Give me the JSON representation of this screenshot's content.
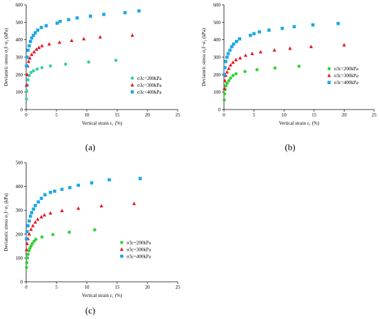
{
  "chart_data": [
    {
      "type": "scatter",
      "panel_label": "(a)",
      "xlabel": "Vertical strain ε₁ (%)",
      "ylabel": "Deviatoric stress σ₁f−σ₃ (kPa)",
      "xlim": [
        0,
        25
      ],
      "ylim": [
        0,
        600
      ],
      "xticks": [
        0,
        5,
        10,
        15,
        20,
        25
      ],
      "yticks": [
        0,
        100,
        200,
        300,
        400,
        500,
        600
      ],
      "grid": false,
      "legend_position": "right",
      "series": [
        {
          "name": "σ3c=200kPa",
          "marker": "circle",
          "color": "#2fd1a6",
          "points": [
            [
              0.05,
              60
            ],
            [
              0.1,
              105
            ],
            [
              0.2,
              140
            ],
            [
              0.3,
              170
            ],
            [
              0.5,
              195
            ],
            [
              0.8,
              212
            ],
            [
              1.2,
              222
            ],
            [
              1.8,
              232
            ],
            [
              2.6,
              240
            ],
            [
              4,
              250
            ],
            [
              6.5,
              260
            ],
            [
              10.3,
              272
            ],
            [
              14.8,
              282
            ]
          ]
        },
        {
          "name": "σ3c=300kPa",
          "marker": "triangle",
          "color": "#e8141e",
          "points": [
            [
              0.05,
              140
            ],
            [
              0.15,
              200
            ],
            [
              0.25,
              250
            ],
            [
              0.4,
              275
            ],
            [
              0.6,
              295
            ],
            [
              0.9,
              315
            ],
            [
              1.3,
              330
            ],
            [
              1.7,
              345
            ],
            [
              2.1,
              355
            ],
            [
              2.6,
              365
            ],
            [
              3.8,
              375
            ],
            [
              5.5,
              385
            ],
            [
              7.5,
              395
            ],
            [
              9.5,
              405
            ],
            [
              12.2,
              415
            ],
            [
              17.5,
              425
            ]
          ]
        },
        {
          "name": "σ3c=400kPa",
          "marker": "square",
          "color": "#19a8e8",
          "points": [
            [
              0.05,
              250
            ],
            [
              0.15,
              300
            ],
            [
              0.3,
              340
            ],
            [
              0.5,
              365
            ],
            [
              0.7,
              390
            ],
            [
              0.9,
              410
            ],
            [
              1.2,
              425
            ],
            [
              1.5,
              440
            ],
            [
              1.9,
              455
            ],
            [
              2.5,
              470
            ],
            [
              3.3,
              480
            ],
            [
              5.1,
              495
            ],
            [
              5.6,
              505
            ],
            [
              7,
              515
            ],
            [
              8.4,
              525
            ],
            [
              10.6,
              535
            ],
            [
              12.8,
              545
            ],
            [
              16.3,
              555
            ],
            [
              18.6,
              565
            ]
          ]
        }
      ]
    },
    {
      "type": "scatter",
      "panel_label": "(b)",
      "xlabel": "Vertical strain ε₁ (%)",
      "ylabel": "Deviatoric stress σ₁f−σ₃ (kPa)",
      "xlim": [
        0,
        25
      ],
      "ylim": [
        0,
        600
      ],
      "xticks": [
        0,
        5,
        10,
        15,
        20,
        25
      ],
      "yticks": [
        0,
        100,
        200,
        300,
        400,
        500,
        600
      ],
      "grid": false,
      "legend_position": "right",
      "series": [
        {
          "name": "σ3c=200kPa",
          "marker": "circle",
          "color": "#2fd137",
          "points": [
            [
              0.05,
              55
            ],
            [
              0.1,
              90
            ],
            [
              0.2,
              115
            ],
            [
              0.3,
              135
            ],
            [
              0.5,
              150
            ],
            [
              0.8,
              165
            ],
            [
              1.1,
              180
            ],
            [
              1.5,
              195
            ],
            [
              2,
              205
            ],
            [
              3.5,
              218
            ],
            [
              5.5,
              228
            ],
            [
              8.5,
              238
            ],
            [
              12.5,
              248
            ]
          ]
        },
        {
          "name": "σ3c=300kPa",
          "marker": "triangle",
          "color": "#e8141e",
          "points": [
            [
              0.05,
              120
            ],
            [
              0.15,
              165
            ],
            [
              0.3,
              195
            ],
            [
              0.5,
              215
            ],
            [
              0.8,
              235
            ],
            [
              1.1,
              255
            ],
            [
              1.5,
              270
            ],
            [
              2,
              285
            ],
            [
              2.7,
              295
            ],
            [
              3.6,
              310
            ],
            [
              4.7,
              320
            ],
            [
              6.1,
              330
            ],
            [
              8.4,
              340
            ],
            [
              11,
              350
            ],
            [
              14.5,
              360
            ],
            [
              20,
              370
            ]
          ]
        },
        {
          "name": "σ3c=400kPa",
          "marker": "square",
          "color": "#19a8e8",
          "points": [
            [
              0.05,
              200
            ],
            [
              0.15,
              240
            ],
            [
              0.3,
              275
            ],
            [
              0.5,
              300
            ],
            [
              0.7,
              320
            ],
            [
              1,
              340
            ],
            [
              1.3,
              360
            ],
            [
              1.6,
              375
            ],
            [
              2.1,
              390
            ],
            [
              2.6,
              405
            ],
            [
              4.4,
              425
            ],
            [
              5,
              435
            ],
            [
              5.9,
              445
            ],
            [
              7.5,
              455
            ],
            [
              9.7,
              465
            ],
            [
              11.7,
              475
            ],
            [
              14.8,
              485
            ],
            [
              19,
              493
            ]
          ]
        }
      ]
    },
    {
      "type": "scatter",
      "panel_label": "(c)",
      "xlabel": "Vertical strain ε₁ (%)",
      "ylabel": "Deviatoric stress σ₁f−σ₃ (kPa)",
      "xlim": [
        0,
        25
      ],
      "ylim": [
        0,
        500
      ],
      "xticks": [
        0,
        5,
        10,
        15,
        20,
        25
      ],
      "yticks": [
        0,
        100,
        200,
        300,
        400,
        500
      ],
      "grid": false,
      "legend_position": "right",
      "series": [
        {
          "name": "σ3c=200kPa",
          "marker": "circle",
          "color": "#2fd137",
          "points": [
            [
              0.05,
              60
            ],
            [
              0.1,
              80
            ],
            [
              0.2,
              100
            ],
            [
              0.3,
              115
            ],
            [
              0.45,
              130
            ],
            [
              0.6,
              140
            ],
            [
              0.8,
              150
            ],
            [
              1,
              160
            ],
            [
              1.3,
              170
            ],
            [
              1.6,
              178
            ],
            [
              2.6,
              188
            ],
            [
              4.4,
              198
            ],
            [
              7.1,
              208
            ],
            [
              11.3,
              218
            ]
          ]
        },
        {
          "name": "σ3c=300kPa",
          "marker": "triangle",
          "color": "#e8141e",
          "points": [
            [
              0.05,
              135
            ],
            [
              0.15,
              160
            ],
            [
              0.3,
              180
            ],
            [
              0.5,
              200
            ],
            [
              0.8,
              220
            ],
            [
              1.1,
              235
            ],
            [
              1.5,
              250
            ],
            [
              1.9,
              262
            ],
            [
              2.5,
              272
            ],
            [
              3,
              280
            ],
            [
              4,
              288
            ],
            [
              5.9,
              298
            ],
            [
              8.6,
              308
            ],
            [
              12.4,
              318
            ],
            [
              17.8,
              328
            ]
          ]
        },
        {
          "name": "σ3c=400kPa",
          "marker": "square",
          "color": "#19a8e8",
          "points": [
            [
              0.05,
              180
            ],
            [
              0.15,
              210
            ],
            [
              0.3,
              235
            ],
            [
              0.5,
              255
            ],
            [
              0.7,
              275
            ],
            [
              0.9,
              290
            ],
            [
              1.2,
              305
            ],
            [
              1.5,
              320
            ],
            [
              2,
              335
            ],
            [
              2.5,
              350
            ],
            [
              3.1,
              365
            ],
            [
              4,
              375
            ],
            [
              4.7,
              380
            ],
            [
              5.9,
              388
            ],
            [
              7.2,
              395
            ],
            [
              8.6,
              405
            ],
            [
              10.8,
              415
            ],
            [
              13.7,
              428
            ],
            [
              18.8,
              433
            ]
          ]
        }
      ]
    }
  ]
}
